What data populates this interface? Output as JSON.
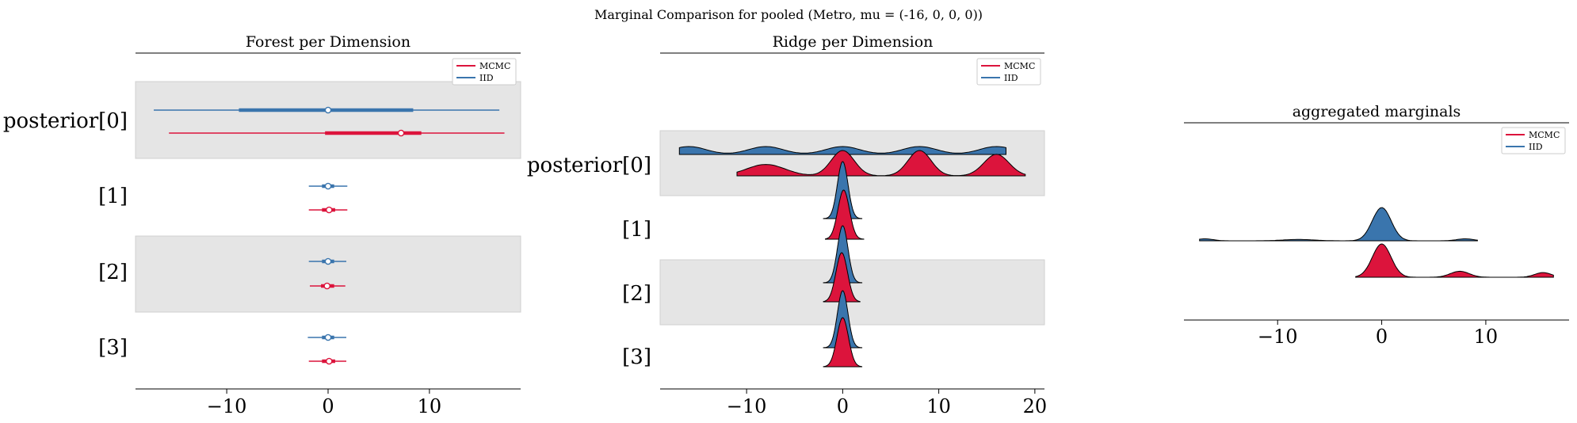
{
  "suptitle": "Marginal Comparison for pooled (Metro, mu = (-16, 0, 0, 0))",
  "colors": {
    "mcmc": "#dc143c",
    "iid": "#3a75ad",
    "band": "#e5e5e5"
  },
  "chart_data": [
    {
      "type": "forest",
      "title": "Forest per Dimension",
      "legend": [
        "MCMC",
        "IID"
      ],
      "legend_position": "top-right",
      "row_labels": [
        "posterior[0]",
        "[1]",
        "[2]",
        "[3]"
      ],
      "xlim": [
        -19,
        19
      ],
      "xticks": [
        -10,
        0,
        10
      ],
      "xticklabels": [
        "−10",
        "0",
        "10"
      ],
      "series": [
        {
          "name": "IID",
          "rows": [
            {
              "low": -17.2,
              "q1": -8.8,
              "median": 0.0,
              "q3": 8.4,
              "high": 16.9
            },
            {
              "low": -1.9,
              "q1": -0.6,
              "median": 0.0,
              "q3": 0.6,
              "high": 1.9
            },
            {
              "low": -1.9,
              "q1": -0.6,
              "median": 0.0,
              "q3": 0.6,
              "high": 1.8
            },
            {
              "low": -2.0,
              "q1": -0.6,
              "median": 0.0,
              "q3": 0.6,
              "high": 1.8
            }
          ]
        },
        {
          "name": "MCMC",
          "rows": [
            {
              "low": -15.7,
              "q1": -0.3,
              "median": 7.2,
              "q3": 9.2,
              "high": 17.4
            },
            {
              "low": -1.9,
              "q1": -0.6,
              "median": 0.1,
              "q3": 0.7,
              "high": 1.9
            },
            {
              "low": -1.8,
              "q1": -0.7,
              "median": -0.1,
              "q3": 0.6,
              "high": 1.7
            },
            {
              "low": -1.9,
              "q1": -0.6,
              "median": 0.1,
              "q3": 0.7,
              "high": 1.8
            }
          ]
        }
      ]
    },
    {
      "type": "ridge",
      "title": "Ridge per Dimension",
      "legend": [
        "MCMC",
        "IID"
      ],
      "legend_position": "top-right",
      "row_labels": [
        "posterior[0]",
        "[1]",
        "[2]",
        "[3]"
      ],
      "xlim": [
        -19,
        21
      ],
      "xticks": [
        -10,
        0,
        10,
        20
      ],
      "xticklabels": [
        "−10",
        "0",
        "10",
        "20"
      ],
      "rows": [
        {
          "iid": {
            "range": [
              -17,
              17
            ],
            "peaks": [
              [
                -16,
                0.55,
                1.8
              ],
              [
                -8,
                0.55,
                1.8
              ],
              [
                0,
                0.55,
                1.8
              ],
              [
                8,
                0.55,
                1.8
              ],
              [
                16,
                0.55,
                1.8
              ]
            ]
          },
          "mcmc": {
            "range": [
              -11,
              19
            ],
            "peaks": [
              [
                -8,
                0.45,
                2.0
              ],
              [
                0,
                1.0,
                1.2
              ],
              [
                8,
                1.0,
                1.2
              ],
              [
                16,
                0.85,
                1.3
              ]
            ]
          }
        },
        {
          "iid": {
            "range": [
              -2,
              2
            ],
            "peaks": [
              [
                0,
                1.0,
                0.55
              ]
            ]
          },
          "mcmc": {
            "range": [
              -1.8,
              2.2
            ],
            "peaks": [
              [
                0.1,
                1.0,
                0.6
              ]
            ]
          }
        },
        {
          "iid": {
            "range": [
              -2,
              2
            ],
            "peaks": [
              [
                0,
                1.0,
                0.55
              ]
            ]
          },
          "mcmc": {
            "range": [
              -2,
              1.8
            ],
            "peaks": [
              [
                -0.1,
                1.0,
                0.6
              ]
            ]
          }
        },
        {
          "iid": {
            "range": [
              -2,
              2
            ],
            "peaks": [
              [
                0,
                1.0,
                0.55
              ]
            ]
          },
          "mcmc": {
            "range": [
              -2,
              2
            ],
            "peaks": [
              [
                0,
                1.0,
                0.6
              ]
            ]
          }
        }
      ]
    },
    {
      "type": "ridge",
      "title": "aggregated marginals",
      "legend": [
        "MCMC",
        "IID"
      ],
      "legend_position": "top-right",
      "xlim": [
        -19,
        18
      ],
      "xticks": [
        -10,
        0,
        10
      ],
      "xticklabels": [
        "−10",
        "0",
        "10"
      ],
      "series": [
        {
          "name": "IID",
          "range": [
            -17.5,
            9.2
          ],
          "peaks": [
            [
              -17,
              0.06,
              0.8
            ],
            [
              -8,
              0.04,
              1.5
            ],
            [
              0,
              1.0,
              0.9
            ],
            [
              8,
              0.06,
              0.8
            ]
          ]
        },
        {
          "name": "MCMC",
          "range": [
            -2.5,
            16.5
          ],
          "peaks": [
            [
              0,
              1.0,
              0.9
            ],
            [
              7.5,
              0.18,
              0.9
            ],
            [
              15.5,
              0.14,
              0.8
            ]
          ]
        }
      ]
    }
  ]
}
